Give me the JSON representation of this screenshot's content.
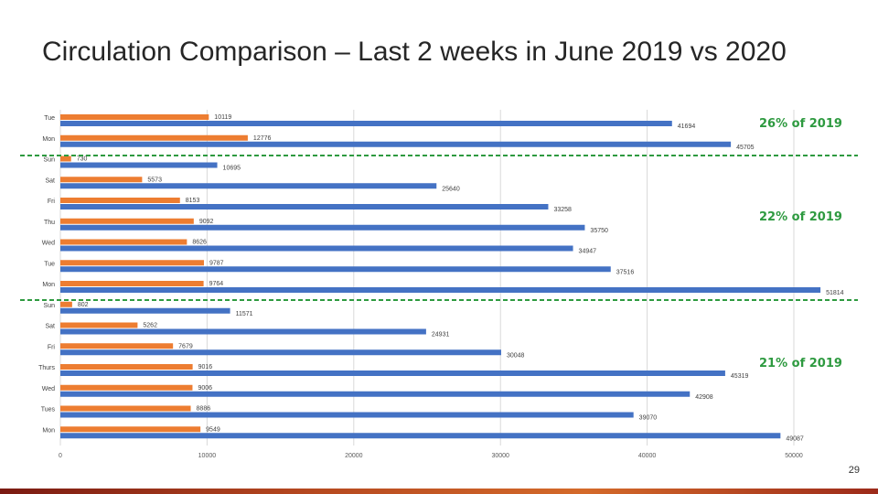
{
  "slide": {
    "title": "Circulation Comparison – Last 2 weeks in June 2019 vs 2020",
    "page_number": "29"
  },
  "callouts": [
    {
      "text": "26% of 2019"
    },
    {
      "text": "22% of 2019"
    },
    {
      "text": "21% of 2019"
    }
  ],
  "colors": {
    "series_2020": "#ed7d31",
    "series_2019": "#4472c4",
    "callout": "#2e9a40",
    "divider": "#2e9a40",
    "grid": "#d9d9d9"
  },
  "chart_data": {
    "type": "bar",
    "orientation": "horizontal",
    "categories": [
      "Tue",
      "Mon",
      "Sun",
      "Sat",
      "Fri",
      "Thu",
      "Wed",
      "Tue",
      "Mon",
      "Sun",
      "Sat",
      "Fri",
      "Thurs",
      "Wed",
      "Tues",
      "Mon"
    ],
    "series": [
      {
        "values": [
          10119,
          12776,
          730,
          5573,
          8153,
          9092,
          8626,
          9787,
          9764,
          802,
          5262,
          7679,
          9016,
          9006,
          8886,
          9549
        ]
      },
      {
        "values": [
          41694,
          45705,
          10695,
          25640,
          33258,
          35750,
          34947,
          37516,
          51814,
          11571,
          24931,
          30048,
          45319,
          42908,
          39070,
          49087
        ]
      }
    ],
    "xticks": [
      0,
      10000,
      20000,
      30000,
      40000,
      50000
    ],
    "xlim": [
      0,
      52000
    ],
    "grid": true,
    "legend": "none"
  }
}
